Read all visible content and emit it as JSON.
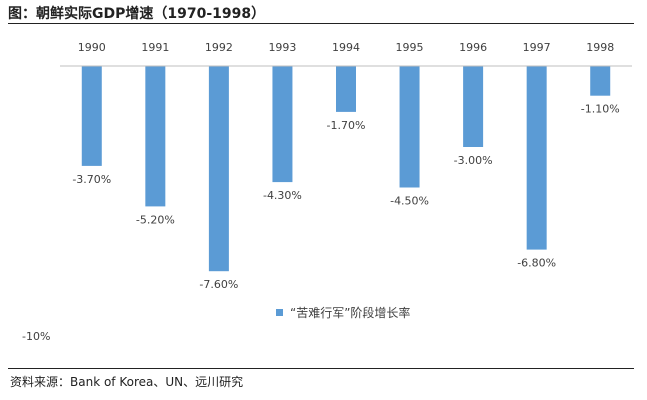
{
  "header": {
    "title": "图：朝鲜实际GDP增速（1970-1998）"
  },
  "footer": {
    "source": "资料来源：Bank of Korea、UN、远川研究"
  },
  "colors": {
    "bar": "#5b9bd5",
    "axis": "#bfbfbf",
    "text": "#404040"
  },
  "chart_data": {
    "type": "bar",
    "title": "",
    "xlabel": "",
    "ylabel": "",
    "categories": [
      "1990",
      "1991",
      "1992",
      "1993",
      "1994",
      "1995",
      "1996",
      "1997",
      "1998"
    ],
    "series": [
      {
        "name": "“苦难行军”阶段增长率",
        "values": [
          -3.7,
          -5.2,
          -7.6,
          -4.3,
          -1.7,
          -4.5,
          -3.0,
          -6.8,
          -1.1
        ]
      }
    ],
    "data_labels": [
      "-3.70%",
      "-5.20%",
      "-7.60%",
      "-4.30%",
      "-1.70%",
      "-4.50%",
      "-3.00%",
      "-6.80%",
      "-1.10%"
    ],
    "ylim": [
      -10,
      0
    ],
    "y_tick_labels": [
      "-10%"
    ],
    "legend_position": "center",
    "grid": false
  }
}
